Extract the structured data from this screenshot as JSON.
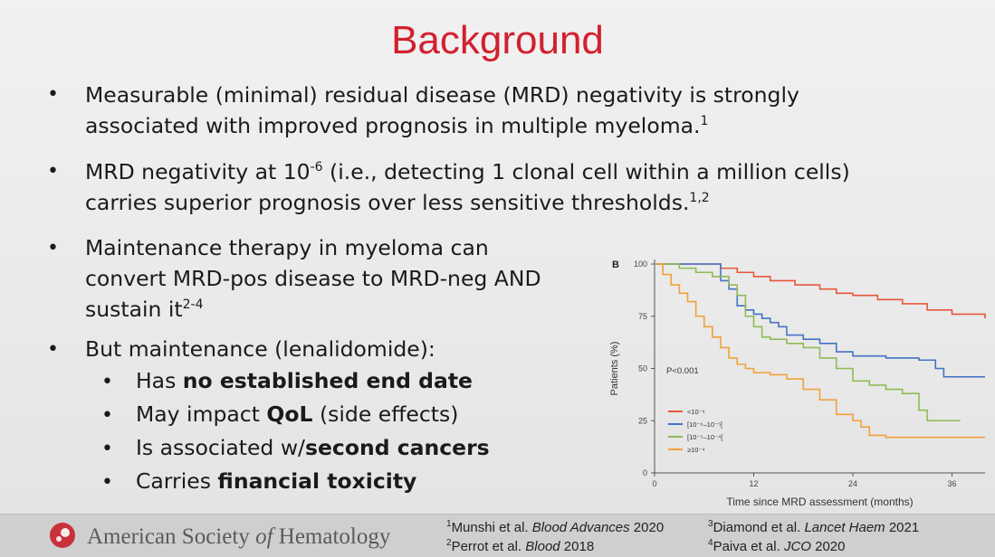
{
  "title": "Background",
  "bullets": {
    "b1": {
      "line1": "Measurable (minimal) residual disease (MRD) negativity is strongly",
      "line2": "associated with improved prognosis in multiple myeloma.",
      "sup": "1"
    },
    "b2": {
      "pre": "MRD negativity at 10",
      "exp": "-6",
      "post": " (i.e., detecting 1 clonal cell within a million cells)",
      "line2": "carries superior prognosis over less sensitive thresholds.",
      "sup": "1,2"
    },
    "b3": {
      "line1": "Maintenance therapy in myeloma can",
      "line2": "convert MRD-pos disease to MRD-neg AND",
      "line3": "sustain it",
      "sup": "2-4"
    },
    "b4": {
      "text": "But maintenance (lenalidomide):"
    },
    "sub": [
      {
        "pre": "Has ",
        "bold": "no established end date",
        "post": ""
      },
      {
        "pre": "May impact ",
        "bold": "QoL",
        "post": " (side effects)"
      },
      {
        "pre": "Is associated w/",
        "bold": "second cancers",
        "post": ""
      },
      {
        "pre": "Carries ",
        "bold": "financial toxicity",
        "post": ""
      }
    ]
  },
  "chart_data": {
    "type": "line",
    "panel_label": "B",
    "xlabel": "Time since MRD assessment (months)",
    "ylabel": "Patients (%)",
    "xlim": [
      0,
      40
    ],
    "ylim": [
      0,
      100
    ],
    "xticks": [
      0,
      12,
      24,
      36
    ],
    "yticks": [
      0,
      25,
      50,
      75,
      100
    ],
    "annotation": "P<0.001",
    "legend_position": "bottom-left",
    "series": [
      {
        "name": "<10⁻⁶",
        "color": "#e8573a",
        "x": [
          0,
          6,
          8,
          10,
          12,
          14,
          17,
          20,
          22,
          24,
          27,
          30,
          33,
          36,
          40
        ],
        "y": [
          100,
          100,
          98,
          96,
          94,
          92,
          90,
          88,
          86,
          85,
          83,
          81,
          78,
          76,
          74
        ]
      },
      {
        "name": "[10⁻⁶–10⁻⁵[",
        "color": "#4472c4",
        "x": [
          0,
          6,
          8,
          9,
          10,
          11,
          12,
          13,
          14,
          15,
          16,
          18,
          20,
          22,
          24,
          28,
          32,
          34,
          35,
          40
        ],
        "y": [
          100,
          100,
          92,
          88,
          80,
          78,
          76,
          74,
          72,
          70,
          66,
          64,
          62,
          58,
          56,
          55,
          54,
          50,
          46,
          46
        ]
      },
      {
        "name": "[10⁻⁵–10⁻⁴[",
        "color": "#8fbc54",
        "x": [
          0,
          3,
          5,
          7,
          9,
          10,
          11,
          12,
          13,
          14,
          16,
          18,
          20,
          22,
          24,
          26,
          28,
          30,
          32,
          33,
          37
        ],
        "y": [
          100,
          98,
          96,
          94,
          90,
          85,
          75,
          70,
          65,
          64,
          62,
          60,
          55,
          50,
          44,
          42,
          40,
          38,
          30,
          25,
          25
        ]
      },
      {
        "name": "≥10⁻⁴",
        "color": "#f0a13a",
        "x": [
          0,
          1,
          2,
          3,
          4,
          5,
          6,
          7,
          8,
          9,
          10,
          11,
          12,
          14,
          16,
          18,
          20,
          22,
          24,
          25,
          26,
          28,
          40
        ],
        "y": [
          100,
          95,
          90,
          86,
          82,
          75,
          70,
          65,
          60,
          55,
          52,
          50,
          48,
          47,
          45,
          40,
          35,
          28,
          25,
          22,
          18,
          17,
          17
        ]
      }
    ]
  },
  "footer": {
    "org_pre": "American Society ",
    "org_italic": "of",
    "org_post": " Hematology",
    "refs": [
      {
        "sup": "1",
        "pre": "Munshi et al. ",
        "it": "Blood Advances",
        "post": " 2020"
      },
      {
        "sup": "2",
        "pre": "Perrot et al. ",
        "it": "Blood",
        "post": " 2018"
      },
      {
        "sup": "3",
        "pre": "Diamond et al. ",
        "it": "Lancet Haem",
        "post": " 2021"
      },
      {
        "sup": "4",
        "pre": "Paiva et al. ",
        "it": "JCO",
        "post": " 2020"
      }
    ]
  }
}
